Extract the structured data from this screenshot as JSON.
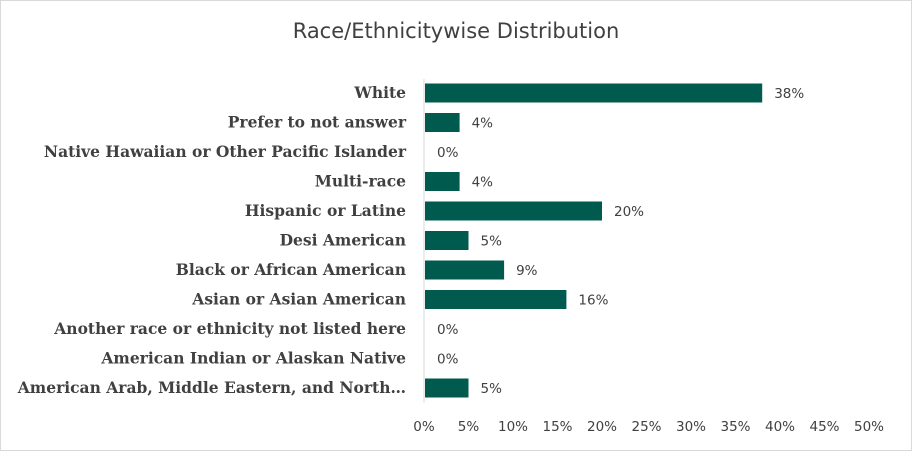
{
  "chart_data": {
    "type": "bar",
    "orientation": "horizontal",
    "title": "Race/Ethnicitywise Distribution",
    "categories": [
      "White",
      "Prefer to not answer",
      "Native Hawaiian or Other Pacific Islander",
      "Multi-race",
      "Hispanic or Latine",
      "Desi American",
      "Black or African American",
      "Asian or Asian American",
      "Another race or ethnicity not listed here",
      "American Indian or Alaskan Native",
      "American Arab, Middle Eastern, and North…"
    ],
    "values": [
      38,
      4,
      0,
      4,
      20,
      5,
      9,
      16,
      0,
      0,
      5
    ],
    "value_labels": [
      "38%",
      "4%",
      "0%",
      "4%",
      "20%",
      "5%",
      "9%",
      "16%",
      "0%",
      "0%",
      "5%"
    ],
    "x_ticks": [
      0,
      5,
      10,
      15,
      20,
      25,
      30,
      35,
      40,
      45,
      50
    ],
    "x_tick_labels": [
      "0%",
      "5%",
      "10%",
      "15%",
      "20%",
      "25%",
      "30%",
      "35%",
      "40%",
      "45%",
      "50%"
    ],
    "xlim": [
      0,
      50
    ],
    "xlabel": "",
    "ylabel": "",
    "grid": false,
    "legend": "none",
    "bar_color": "#005a4e",
    "axis_color": "#d9d9d9"
  }
}
